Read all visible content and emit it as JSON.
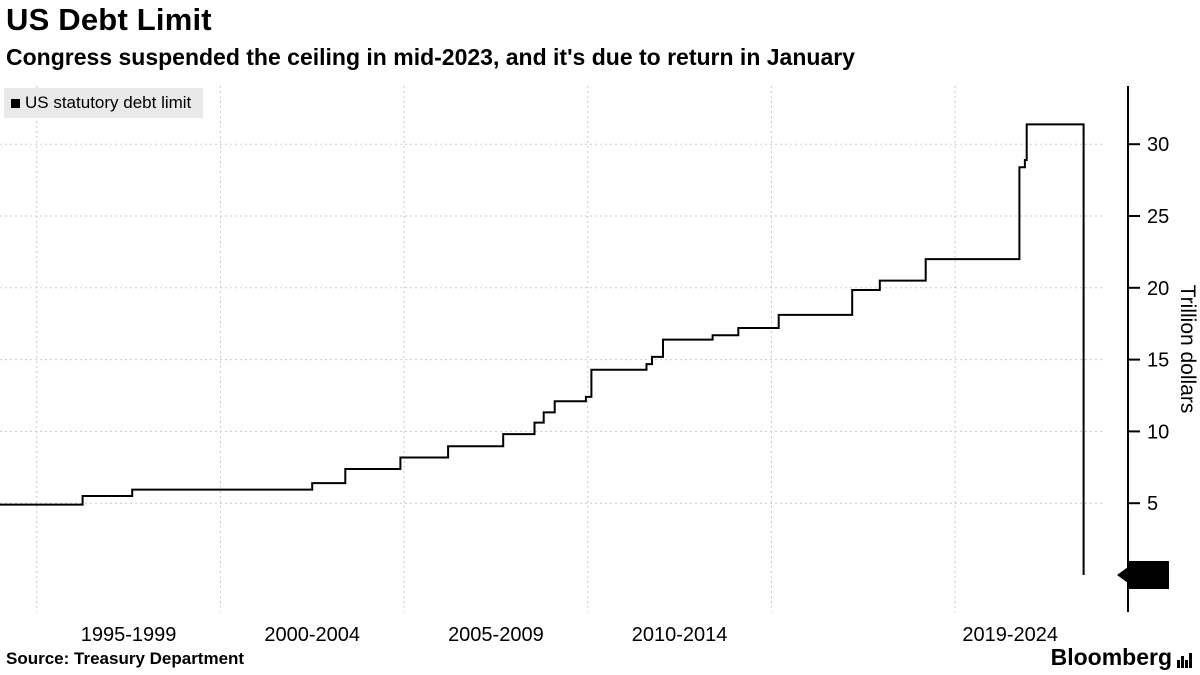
{
  "header": {
    "title": "US Debt Limit",
    "subtitle": "Congress suspended the ceiling in mid-2023, and it's due to return in January"
  },
  "legend": {
    "label": "US statutory debt limit",
    "marker_color": "#000000"
  },
  "footer": {
    "source": "Source: Treasury Department",
    "brand": "Bloomberg"
  },
  "chart_data": {
    "type": "line",
    "step": true,
    "title": "US Debt Limit",
    "subtitle": "Congress suspended the ceiling in mid-2023, and it's due to return in January",
    "ylabel": "Trillion dollars",
    "xlabel": "",
    "ylim": [
      0,
      33
    ],
    "xlim": [
      1994,
      2024
    ],
    "yticks": [
      5,
      10,
      15,
      20,
      25,
      30
    ],
    "xtick_labels": [
      {
        "label": "1995-1999",
        "center_year": 1997.5
      },
      {
        "label": "2000-2004",
        "center_year": 2002.5
      },
      {
        "label": "2005-2009",
        "center_year": 2007.5
      },
      {
        "label": "2010-2014",
        "center_year": 2012.5
      },
      {
        "label": "2019-2024",
        "center_year": 2021.5
      }
    ],
    "x_gridline_years": [
      1995,
      2000,
      2005,
      2010,
      2015,
      2020
    ],
    "grid": true,
    "legend_position": "top-left",
    "line_color": "#000000",
    "grid_color": "#c9c9c9",
    "end_badge": {
      "label": "0",
      "value": 0
    },
    "series": [
      {
        "name": "US statutory debt limit",
        "units": "trillion USD",
        "points": [
          [
            1994.0,
            4.9
          ],
          [
            1996.25,
            5.5
          ],
          [
            1997.6,
            5.95
          ],
          [
            2002.5,
            6.4
          ],
          [
            2003.4,
            7.38
          ],
          [
            2004.9,
            8.18
          ],
          [
            2006.2,
            8.96
          ],
          [
            2007.7,
            9.81
          ],
          [
            2008.55,
            10.61
          ],
          [
            2008.8,
            11.32
          ],
          [
            2009.1,
            12.1
          ],
          [
            2009.95,
            12.4
          ],
          [
            2010.1,
            14.29
          ],
          [
            2011.6,
            14.69
          ],
          [
            2011.75,
            15.19
          ],
          [
            2012.05,
            16.39
          ],
          [
            2013.4,
            16.7
          ],
          [
            2014.1,
            17.2
          ],
          [
            2015.2,
            18.11
          ],
          [
            2017.2,
            19.85
          ],
          [
            2017.95,
            20.5
          ],
          [
            2019.2,
            22.0
          ],
          [
            2021.75,
            28.4
          ],
          [
            2021.9,
            28.9
          ],
          [
            2021.95,
            31.38
          ],
          [
            2023.5,
            0
          ]
        ]
      }
    ]
  }
}
